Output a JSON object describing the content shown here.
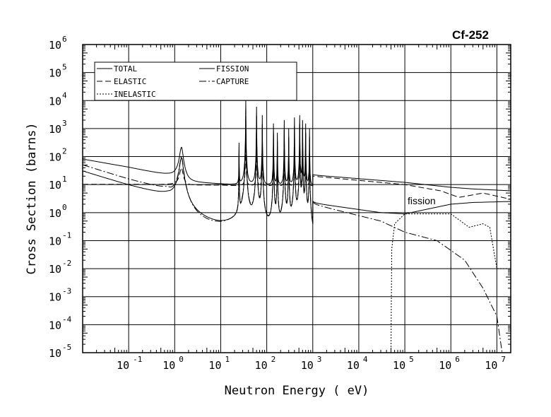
{
  "chart_data": {
    "type": "line",
    "title": "Cf-252",
    "xlabel": "Neutron Energy ( eV)",
    "ylabel": "Cross Section (barns)",
    "xscale": "log",
    "yscale": "log",
    "xlim": [
      0.01,
      20000000
    ],
    "ylim": [
      1e-05,
      1000000
    ],
    "grid": true,
    "x_ticks": [
      {
        "base": "10",
        "exp": "-1",
        "value": 0.1
      },
      {
        "base": "10",
        "exp": "0",
        "value": 1
      },
      {
        "base": "10",
        "exp": "1",
        "value": 10
      },
      {
        "base": "10",
        "exp": "2",
        "value": 100
      },
      {
        "base": "10",
        "exp": "3",
        "value": 1000
      },
      {
        "base": "10",
        "exp": "4",
        "value": 10000
      },
      {
        "base": "10",
        "exp": "5",
        "value": 100000
      },
      {
        "base": "10",
        "exp": "6",
        "value": 1000000
      },
      {
        "base": "10",
        "exp": "7",
        "value": 10000000
      }
    ],
    "y_ticks": [
      {
        "base": "10",
        "exp": "6",
        "value": 1000000.0
      },
      {
        "base": "10",
        "exp": "5",
        "value": 100000.0
      },
      {
        "base": "10",
        "exp": "4",
        "value": 10000.0
      },
      {
        "base": "10",
        "exp": "3",
        "value": 1000.0
      },
      {
        "base": "10",
        "exp": "2",
        "value": 100.0
      },
      {
        "base": "10",
        "exp": "1",
        "value": 10
      },
      {
        "base": "10",
        "exp": "0",
        "value": 1
      },
      {
        "base": "10",
        "exp": "-1",
        "value": 0.1
      },
      {
        "base": "10",
        "exp": "-2",
        "value": 0.01
      },
      {
        "base": "10",
        "exp": "-3",
        "value": 0.001
      },
      {
        "base": "10",
        "exp": "-4",
        "value": 0.0001
      },
      {
        "base": "10",
        "exp": "-5",
        "value": 1e-05
      }
    ],
    "legend": {
      "placement": "top-left",
      "entries": [
        "TOTAL",
        "ELASTIC",
        "INELASTIC",
        "FISSION",
        "CAPTURE"
      ]
    },
    "annotations": [
      {
        "text": "fission",
        "x": 150000,
        "y": 2
      }
    ],
    "resonances": [
      {
        "E": 1.4,
        "peak": 200
      },
      {
        "E": 25,
        "peak": 300
      },
      {
        "E": 35,
        "peak": 10000
      },
      {
        "E": 60,
        "peak": 6000
      },
      {
        "E": 80,
        "peak": 3000
      },
      {
        "E": 140,
        "peak": 1500
      },
      {
        "E": 170,
        "peak": 700
      },
      {
        "E": 240,
        "peak": 2000
      },
      {
        "E": 300,
        "peak": 1000
      },
      {
        "E": 400,
        "peak": 2500
      },
      {
        "E": 520,
        "peak": 3000
      },
      {
        "E": 600,
        "peak": 2000
      },
      {
        "E": 700,
        "peak": 1500
      },
      {
        "E": 850,
        "peak": 1000
      }
    ],
    "series": [
      {
        "name": "TOTAL",
        "style": "solid",
        "res_fraction": 1.0,
        "x": [
          0.01,
          0.1,
          0.7,
          2,
          10,
          20,
          1000,
          1000.1,
          100000,
          1000000,
          3000000,
          20000000
        ],
        "y": [
          80,
          40,
          20,
          12,
          10,
          9,
          9,
          22,
          12,
          8,
          7,
          6
        ]
      },
      {
        "name": "ELASTIC",
        "style": "dashed",
        "res_fraction": 0.15,
        "x": [
          0.01,
          0.1,
          1,
          10,
          20,
          1000,
          1000.1,
          100000,
          600000,
          1500000,
          5000000,
          20000000
        ],
        "y": [
          10,
          10,
          9.5,
          9.5,
          9,
          9,
          20,
          10,
          6,
          3.5,
          5,
          3
        ]
      },
      {
        "name": "INELASTIC",
        "style": "dotted",
        "res_fraction": 0,
        "x": [
          50000,
          52000,
          60000,
          100000,
          1000000,
          2500000,
          5000000,
          7000000,
          10000000,
          20000000
        ],
        "y": [
          1e-05,
          0.05,
          0.4,
          0.9,
          0.9,
          0.3,
          0.4,
          0.3,
          0.01,
          0.01
        ]
      },
      {
        "name": "FISSION",
        "style": "solid",
        "res_fraction": 0.45,
        "x": [
          0.01,
          0.1,
          0.7,
          2,
          10,
          20,
          1000,
          1000.1,
          30000,
          100000,
          1000000,
          3000000,
          20000000
        ],
        "y": [
          30,
          9,
          3.5,
          1,
          0.15,
          0.1,
          0.05,
          2.2,
          1.0,
          0.9,
          2.0,
          2.3,
          2.5
        ]
      },
      {
        "name": "CAPTURE",
        "style": "dashdot",
        "res_fraction": 0.5,
        "x": [
          0.01,
          0.1,
          0.7,
          2,
          10,
          20,
          1000,
          1000.1,
          30000,
          100000,
          500000,
          2000000,
          5000000,
          10000000,
          13000000
        ],
        "y": [
          50,
          15,
          6,
          0.7,
          0.08,
          0.05,
          0.01,
          2,
          0.5,
          0.2,
          0.1,
          0.02,
          0.002,
          0.0002,
          1e-05
        ]
      }
    ]
  }
}
